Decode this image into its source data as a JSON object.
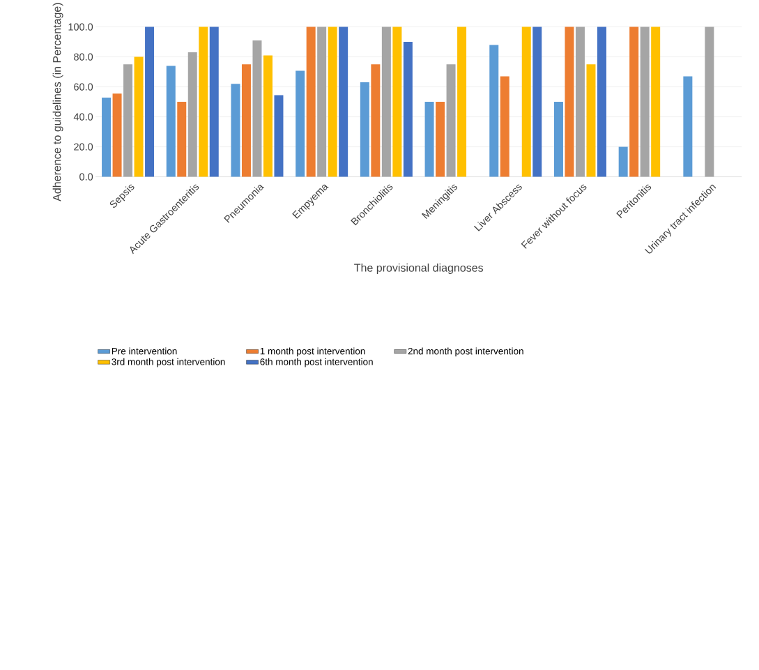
{
  "chart_data": {
    "type": "bar",
    "xlabel": "The provisional diagnoses",
    "ylabel": "Adherence to guidelines (in Percentage)",
    "categories": [
      "Sepsis",
      "Acute Gastroenteritis",
      "Pneumonia",
      "Empyema",
      "Bronchiolitis",
      "Meningitis",
      "Liver Abscess",
      "Fever without focus",
      "Peritonitis",
      "Urinary tract infection"
    ],
    "series": [
      {
        "name": "Pre intervention",
        "color": "#5b9bd5",
        "values": [
          52.8,
          74,
          62,
          70.7,
          63,
          50,
          87.9,
          50,
          20,
          67
        ]
      },
      {
        "name": "1 month post intervention",
        "color": "#ed7d31",
        "values": [
          55.5,
          50,
          75,
          100,
          75,
          50,
          67,
          100,
          100,
          null
        ]
      },
      {
        "name": "2nd month post intervention",
        "color": "#a5a5a5",
        "values": [
          75,
          83,
          91,
          100,
          100,
          75,
          null,
          100,
          100,
          100
        ]
      },
      {
        "name": "3rd month post intervention",
        "color": "#ffc000",
        "values": [
          80,
          100,
          81,
          100,
          100,
          100,
          100,
          75,
          100,
          null
        ]
      },
      {
        "name": "6th month post intervention",
        "color": "#4472c4",
        "values": [
          100,
          100,
          54.4,
          100,
          90,
          null,
          100,
          100,
          null,
          null
        ]
      }
    ],
    "ylim": [
      0,
      100
    ],
    "yticks": [
      {
        "value": 0,
        "label": "0.0"
      },
      {
        "value": 20,
        "label": "20.0"
      },
      {
        "value": 40,
        "label": "40.0"
      },
      {
        "value": 60,
        "label": "60.0"
      },
      {
        "value": 80,
        "label": "80.0"
      },
      {
        "value": 100,
        "label": "100.0"
      }
    ],
    "grid": "y",
    "legend": "bottom"
  }
}
